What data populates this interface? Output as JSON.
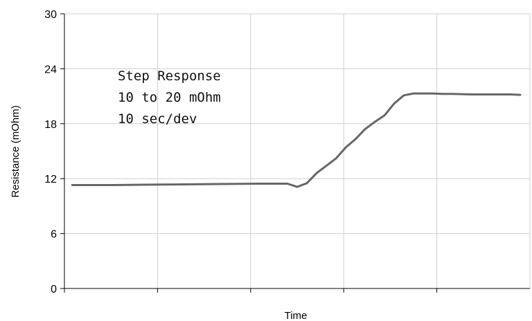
{
  "chart_data": {
    "type": "line",
    "title": "",
    "xlabel": "Time",
    "ylabel": "Resistance (mOhm)",
    "ylim": [
      0,
      30
    ],
    "yticks": [
      0,
      6,
      12,
      18,
      24,
      30
    ],
    "xlim": [
      0,
      48
    ],
    "xtick_count": 5,
    "grid": true,
    "legend": "none",
    "annotation_lines": [
      "Step Response",
      "10 to 20 mOhm",
      "10 sec/dev"
    ],
    "series": [
      {
        "color": "#666666",
        "x": [
          0.8,
          5,
          10,
          15,
          20,
          23,
          24,
          25,
          26,
          27,
          28,
          29,
          30,
          31,
          32,
          33,
          34,
          35,
          36,
          37,
          38,
          39,
          40,
          42,
          44,
          46,
          47
        ],
        "y": [
          11.3,
          11.3,
          11.35,
          11.4,
          11.45,
          11.45,
          11.1,
          11.5,
          12.6,
          13.4,
          14.2,
          15.4,
          16.3,
          17.4,
          18.2,
          18.9,
          20.2,
          21.1,
          21.3,
          21.3,
          21.3,
          21.25,
          21.25,
          21.2,
          21.2,
          21.2,
          21.15
        ]
      }
    ]
  }
}
